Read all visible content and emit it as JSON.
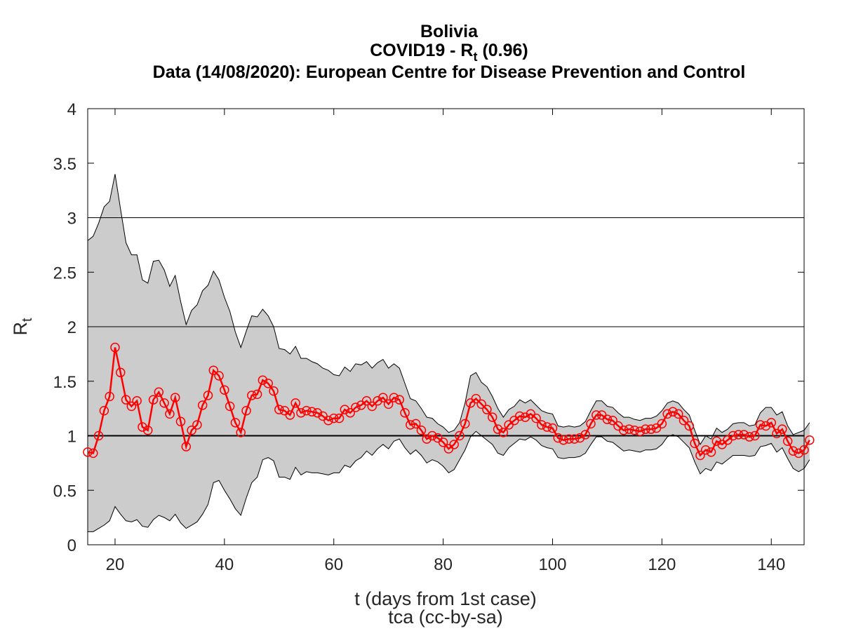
{
  "chart_data": {
    "type": "line",
    "title_lines": {
      "country": "Bolivia",
      "metric_prefix": "COVID19 - R",
      "metric_sub": "t",
      "metric_suffix": " (0.96)",
      "source": "Data (14/08/2020): European Centre for Disease Prevention and Control"
    },
    "ylabel_main": "R",
    "ylabel_sub": "t",
    "xlabel": "t (days from 1st case)",
    "credit": "tca (cc-by-sa)",
    "xlim": [
      15,
      146
    ],
    "ylim": [
      0,
      4
    ],
    "xticks": [
      20,
      40,
      60,
      80,
      100,
      120,
      140
    ],
    "yticks": [
      0,
      0.5,
      1,
      1.5,
      2,
      2.5,
      3,
      3.5,
      4
    ],
    "ytick_labels": [
      "0",
      "0.5",
      "1",
      "1.5",
      "2",
      "2.5",
      "3",
      "3.5",
      "4"
    ],
    "reference_lines": [
      1,
      2,
      3
    ],
    "colors": {
      "series": "#ff0000",
      "band": "#cccccc",
      "band_edge": "#000000",
      "reference": "#000000"
    },
    "x_start": 15,
    "series": [
      {
        "marker": "circle",
        "values": [
          0.85,
          0.84,
          1.0,
          1.23,
          1.36,
          1.81,
          1.58,
          1.33,
          1.27,
          1.32,
          1.08,
          1.05,
          1.33,
          1.4,
          1.3,
          1.2,
          1.35,
          1.13,
          0.9,
          1.05,
          1.1,
          1.28,
          1.37,
          1.6,
          1.55,
          1.42,
          1.27,
          1.12,
          1.03,
          1.23,
          1.37,
          1.38,
          1.51,
          1.48,
          1.41,
          1.24,
          1.23,
          1.19,
          1.3,
          1.21,
          1.23,
          1.22,
          1.21,
          1.18,
          1.14,
          1.16,
          1.16,
          1.24,
          1.21,
          1.26,
          1.28,
          1.32,
          1.27,
          1.32,
          1.35,
          1.29,
          1.35,
          1.33,
          1.21,
          1.1,
          1.11,
          1.05,
          0.97,
          1.0,
          0.98,
          0.94,
          0.88,
          0.92,
          1.0,
          1.11,
          1.3,
          1.34,
          1.29,
          1.24,
          1.17,
          1.06,
          1.03,
          1.1,
          1.14,
          1.18,
          1.17,
          1.2,
          1.16,
          1.1,
          1.08,
          1.07,
          0.98,
          0.96,
          0.97,
          0.97,
          0.98,
          1.01,
          1.11,
          1.19,
          1.19,
          1.15,
          1.14,
          1.09,
          1.05,
          1.06,
          1.05,
          1.04,
          1.06,
          1.06,
          1.07,
          1.11,
          1.2,
          1.22,
          1.2,
          1.14,
          1.09,
          0.93,
          0.82,
          0.87,
          0.85,
          0.95,
          0.92,
          0.96,
          1.0,
          1.01,
          1.01,
          0.99,
          1.0,
          1.1,
          1.09,
          1.12,
          1.02,
          1.06,
          0.95,
          0.86,
          0.84,
          0.87,
          0.96
        ]
      }
    ],
    "band_upper": [
      2.79,
      2.83,
      2.95,
      3.1,
      3.15,
      3.4,
      3.08,
      2.77,
      2.66,
      2.66,
      2.43,
      2.4,
      2.6,
      2.61,
      2.52,
      2.37,
      2.47,
      2.23,
      2.02,
      2.15,
      2.2,
      2.33,
      2.38,
      2.51,
      2.43,
      2.27,
      2.14,
      1.95,
      1.81,
      1.96,
      2.1,
      2.09,
      2.16,
      2.1,
      2.0,
      1.8,
      1.79,
      1.75,
      1.82,
      1.71,
      1.71,
      1.68,
      1.66,
      1.62,
      1.6,
      1.56,
      1.55,
      1.63,
      1.59,
      1.66,
      1.65,
      1.68,
      1.62,
      1.67,
      1.7,
      1.62,
      1.66,
      1.62,
      1.48,
      1.34,
      1.32,
      1.25,
      1.17,
      1.16,
      1.11,
      1.08,
      1.03,
      1.05,
      1.12,
      1.3,
      1.55,
      1.58,
      1.49,
      1.45,
      1.36,
      1.25,
      1.17,
      1.24,
      1.27,
      1.33,
      1.3,
      1.33,
      1.28,
      1.23,
      1.21,
      1.2,
      1.09,
      1.08,
      1.09,
      1.08,
      1.09,
      1.13,
      1.23,
      1.32,
      1.32,
      1.27,
      1.26,
      1.21,
      1.17,
      1.17,
      1.15,
      1.14,
      1.16,
      1.16,
      1.18,
      1.23,
      1.3,
      1.32,
      1.3,
      1.24,
      1.19,
      1.05,
      0.92,
      1.0,
      0.97,
      1.07,
      1.03,
      1.06,
      1.11,
      1.12,
      1.12,
      1.09,
      1.1,
      1.21,
      1.26,
      1.26,
      1.19,
      1.22,
      1.09,
      1.01,
      1.03,
      1.05,
      1.12
    ],
    "band_lower": [
      0.12,
      0.12,
      0.15,
      0.18,
      0.22,
      0.35,
      0.28,
      0.22,
      0.21,
      0.23,
      0.17,
      0.16,
      0.23,
      0.27,
      0.25,
      0.22,
      0.28,
      0.2,
      0.15,
      0.18,
      0.21,
      0.28,
      0.37,
      0.57,
      0.59,
      0.5,
      0.42,
      0.33,
      0.27,
      0.43,
      0.57,
      0.62,
      0.78,
      0.8,
      0.77,
      0.62,
      0.62,
      0.6,
      0.71,
      0.64,
      0.67,
      0.66,
      0.66,
      0.65,
      0.64,
      0.66,
      0.66,
      0.73,
      0.71,
      0.77,
      0.8,
      0.86,
      0.82,
      0.88,
      0.92,
      0.88,
      0.95,
      0.97,
      0.89,
      0.83,
      0.87,
      0.82,
      0.75,
      0.78,
      0.76,
      0.72,
      0.66,
      0.69,
      0.78,
      0.87,
      0.99,
      1.04,
      1.0,
      0.96,
      0.92,
      0.84,
      0.82,
      0.89,
      0.93,
      0.97,
      0.96,
      0.99,
      0.96,
      0.91,
      0.89,
      0.88,
      0.8,
      0.79,
      0.8,
      0.8,
      0.81,
      0.84,
      0.92,
      0.99,
      0.99,
      0.95,
      0.94,
      0.9,
      0.86,
      0.87,
      0.86,
      0.85,
      0.87,
      0.87,
      0.88,
      0.92,
      0.99,
      1.01,
      0.99,
      0.94,
      0.89,
      0.76,
      0.65,
      0.7,
      0.68,
      0.76,
      0.74,
      0.78,
      0.82,
      0.82,
      0.82,
      0.81,
      0.82,
      0.9,
      0.91,
      0.93,
      0.85,
      0.89,
      0.79,
      0.7,
      0.67,
      0.7,
      0.78
    ]
  }
}
